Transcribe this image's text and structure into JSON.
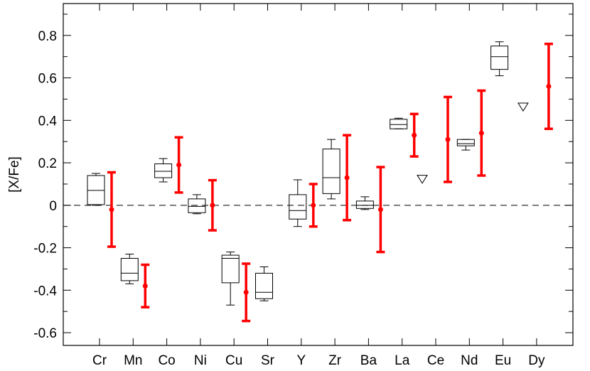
{
  "chart_data": {
    "type": "box",
    "ylabel": "[X/Fe]",
    "xlabel": "",
    "ylim": [
      -0.66,
      0.95
    ],
    "yticks": [
      -0.6,
      -0.4,
      -0.2,
      0,
      0.2,
      0.4,
      0.6,
      0.8
    ],
    "ytick_labels": [
      "-0.6",
      "-0.4",
      "-0.2",
      "0",
      "0.2",
      "0.4",
      "0.6",
      "0.8"
    ],
    "categories": [
      "Cr",
      "Mn",
      "Co",
      "Ni",
      "Cu",
      "Sr",
      "Y",
      "Zr",
      "Ba",
      "La",
      "Ce",
      "Nd",
      "Eu",
      "Dy"
    ],
    "reference_line": {
      "y": 0,
      "style": "dashed"
    },
    "box_series": {
      "color": "#000000",
      "boxes": [
        {
          "category": "Cr",
          "min": 0.0,
          "q1": 0.003,
          "median": 0.07,
          "q3": 0.14,
          "max": 0.15
        },
        {
          "category": "Mn",
          "min": -0.37,
          "q1": -0.355,
          "median": -0.32,
          "q3": -0.25,
          "max": -0.23
        },
        {
          "category": "Co",
          "min": 0.11,
          "q1": 0.13,
          "median": 0.16,
          "q3": 0.195,
          "max": 0.22
        },
        {
          "category": "Ni",
          "min": -0.04,
          "q1": -0.035,
          "median": -0.005,
          "q3": 0.03,
          "max": 0.05
        },
        {
          "category": "Cu",
          "min": -0.47,
          "q1": -0.365,
          "median": -0.25,
          "q3": -0.235,
          "max": -0.22
        },
        {
          "category": "Sr",
          "min": -0.45,
          "q1": -0.44,
          "median": -0.41,
          "q3": -0.32,
          "max": -0.29
        },
        {
          "category": "Y",
          "min": -0.1,
          "q1": -0.065,
          "median": -0.025,
          "q3": 0.05,
          "max": 0.12
        },
        {
          "category": "Zr",
          "min": 0.03,
          "q1": 0.055,
          "median": 0.13,
          "q3": 0.265,
          "max": 0.31
        },
        {
          "category": "Ba",
          "min": -0.02,
          "q1": -0.015,
          "median": 0.0,
          "q3": 0.02,
          "max": 0.04
        },
        {
          "category": "La",
          "min": 0.36,
          "q1": 0.36,
          "median": 0.38,
          "q3": 0.405,
          "max": 0.41
        },
        {
          "category": "Nd",
          "min": 0.26,
          "q1": 0.28,
          "median": 0.29,
          "q3": 0.31,
          "max": 0.31
        },
        {
          "category": "Eu",
          "min": 0.61,
          "q1": 0.64,
          "median": 0.7,
          "q3": 0.75,
          "max": 0.77
        }
      ]
    },
    "error_series": {
      "color": "#ff0000",
      "points": [
        {
          "category": "Cr",
          "value": -0.02,
          "err": 0.175
        },
        {
          "category": "Mn",
          "value": -0.38,
          "err": 0.1
        },
        {
          "category": "Co",
          "value": 0.19,
          "err": 0.13
        },
        {
          "category": "Ni",
          "value": 0.0,
          "err": 0.118
        },
        {
          "category": "Cu",
          "value": -0.41,
          "err": 0.135
        },
        {
          "category": "Y",
          "value": 0.0,
          "err": 0.1
        },
        {
          "category": "Zr",
          "value": 0.13,
          "err": 0.2
        },
        {
          "category": "Ba",
          "value": -0.02,
          "err": 0.2
        },
        {
          "category": "La",
          "value": 0.33,
          "err": 0.1
        },
        {
          "category": "Ce",
          "value": 0.31,
          "err": 0.2
        },
        {
          "category": "Nd",
          "value": 0.34,
          "err": 0.2
        },
        {
          "category": "Dy",
          "value": 0.56,
          "err": 0.2
        }
      ]
    },
    "upper_limits": {
      "marker": "open-triangle-down",
      "color": "#000000",
      "points": [
        {
          "category": "Ce",
          "value": 0.125
        },
        {
          "category": "Dy",
          "value": 0.465
        }
      ]
    }
  }
}
